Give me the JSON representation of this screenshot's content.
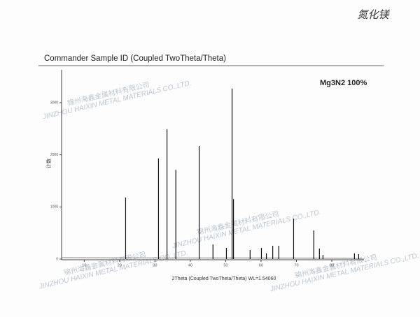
{
  "chart_data": {
    "type": "stem",
    "title": "Commander Sample ID (Coupled TwoTheta/Theta)",
    "annotation": "Mg3N2 100%",
    "handwritten_note": "氮化镁",
    "watermark": [
      "锦州海鑫金属材料有限公司",
      "JINZHOU HAIXIN METAL MATERIALS CO.,LTD."
    ],
    "x_label": "2Theta (Coupled TwoTheta/Theta) WL=1.54060",
    "y_label": "计数",
    "x": [
      21.7,
      31.0,
      33.4,
      35.9,
      42.5,
      46.4,
      50.2,
      51.8,
      52.2,
      56.9,
      60.1,
      61.5,
      63.3,
      65.0,
      69.2,
      74.9,
      76.5,
      77.5,
      86.4,
      87.6
    ],
    "values": [
      1180,
      1930,
      2490,
      1710,
      2170,
      280,
      215,
      3270,
      1150,
      175,
      215,
      110,
      255,
      255,
      775,
      550,
      200,
      80,
      110,
      95
    ],
    "color": "#111111",
    "xlim": [
      3.6,
      89.1
    ],
    "xticks": [
      10,
      20,
      30,
      40,
      50,
      60,
      70,
      80
    ],
    "ylim": [
      0,
      3630
    ],
    "yticks": [
      0,
      1000,
      2000,
      3000
    ]
  }
}
